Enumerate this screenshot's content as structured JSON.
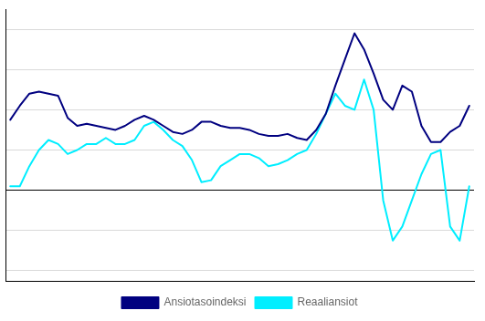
{
  "chart_data": {
    "type": "line",
    "categories": [
      null,
      null,
      null,
      null,
      null,
      null,
      null,
      null,
      null,
      null,
      null,
      null,
      null,
      null,
      null,
      null,
      null,
      null,
      null,
      null,
      null,
      null,
      null,
      null,
      null,
      null,
      null,
      null,
      null,
      null,
      null,
      null,
      null,
      null,
      null,
      null,
      null,
      null,
      null,
      null,
      null,
      null,
      null,
      null,
      null,
      null,
      null,
      null,
      null
    ],
    "series": [
      {
        "name": "Ansiotasoindeksi",
        "color": "#000080",
        "values": [
          3.5,
          4.2,
          4.8,
          4.9,
          4.8,
          4.7,
          3.6,
          3.2,
          3.3,
          3.2,
          3.1,
          3.0,
          3.2,
          3.5,
          3.7,
          3.5,
          3.2,
          2.9,
          2.8,
          3.0,
          3.4,
          3.4,
          3.2,
          3.1,
          3.1,
          3.0,
          2.8,
          2.7,
          2.7,
          2.8,
          2.6,
          2.5,
          3.0,
          3.8,
          5.2,
          6.5,
          7.8,
          7.0,
          5.8,
          4.5,
          4.0,
          5.2,
          4.9,
          3.2,
          2.4,
          2.4,
          2.9,
          3.2,
          4.2
        ]
      },
      {
        "name": "Reaaliansiot",
        "color": "#00EEFF",
        "values": [
          0.2,
          0.2,
          1.2,
          2.0,
          2.5,
          2.3,
          1.8,
          2.0,
          2.3,
          2.3,
          2.6,
          2.3,
          2.3,
          2.5,
          3.2,
          3.4,
          3.0,
          2.5,
          2.2,
          1.5,
          0.4,
          0.5,
          1.2,
          1.5,
          1.8,
          1.8,
          1.6,
          1.2,
          1.3,
          1.5,
          1.8,
          2.0,
          2.8,
          3.8,
          4.8,
          4.2,
          4.0,
          5.5,
          4.0,
          -0.5,
          -2.5,
          -1.8,
          -0.5,
          0.8,
          1.8,
          2.0,
          -1.8,
          -2.5,
          0.2
        ]
      }
    ],
    "ylim": [
      -4.5,
      9.0
    ],
    "yticks": [
      -4,
      -2,
      0,
      2,
      4,
      6,
      8
    ],
    "grid": true,
    "legend": "bottom",
    "tick_labels": false
  }
}
